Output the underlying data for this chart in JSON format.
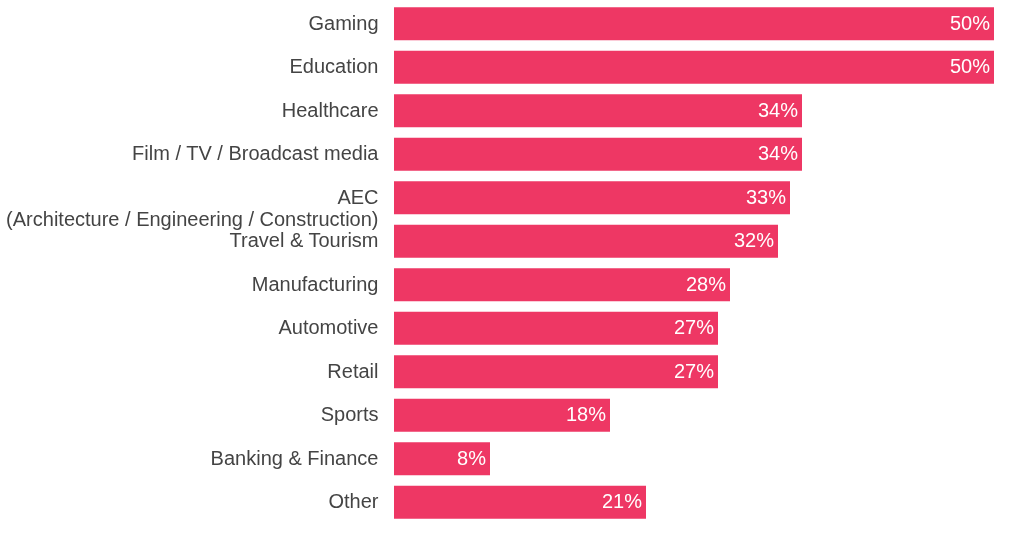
{
  "chart_data": {
    "type": "bar",
    "orientation": "horizontal",
    "categories": [
      "Gaming",
      "Education",
      "Healthcare",
      "Film / TV / Broadcast media",
      "AEC\n(Architecture / Engineering / Construction)",
      "Travel & Tourism",
      "Manufacturing",
      "Automotive",
      "Retail",
      "Sports",
      "Banking & Finance",
      "Other"
    ],
    "values": [
      50,
      50,
      34,
      34,
      33,
      32,
      28,
      27,
      27,
      18,
      8,
      21
    ],
    "value_labels": [
      "50%",
      "50%",
      "34%",
      "34%",
      "33%",
      "32%",
      "28%",
      "27%",
      "27%",
      "18%",
      "8%",
      "21%"
    ],
    "color": "#ee3764",
    "grid": false
  }
}
